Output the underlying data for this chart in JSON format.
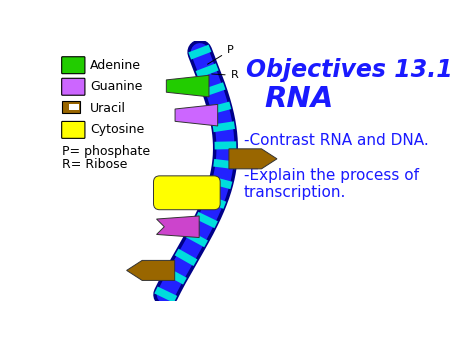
{
  "background_color": "#ffffff",
  "title_line1": "Objectives 13.1",
  "title_line2": "RNA",
  "title_color": "#1a1aff",
  "title_fontsize": 17,
  "bullet1": "-Contrast RNA and DNA.",
  "bullet2": "-Explain the process of\ntranscription.",
  "bullet_color": "#1a1aff",
  "bullet_fontsize": 11,
  "legend_items": [
    {
      "label": "Adenine",
      "color": "#22cc00"
    },
    {
      "label": "Guanine",
      "color": "#cc66ff"
    },
    {
      "label": "Uracil",
      "color": "#996600"
    },
    {
      "label": "Cytosine",
      "color": "#ffff00"
    }
  ],
  "legend_fontsize": 9,
  "p_label": "P= phosphate",
  "r_label": "R= Ribose",
  "strand_outer_color": "#000088",
  "strand_inner_color": "#2222ff",
  "phosphate_color": "#00dddd",
  "adenine_color": "#22cc00",
  "guanine_color": "#cc66ff",
  "uracil_color": "#996600",
  "cytosine_color": "#ffff00",
  "magenta_color": "#cc44cc"
}
